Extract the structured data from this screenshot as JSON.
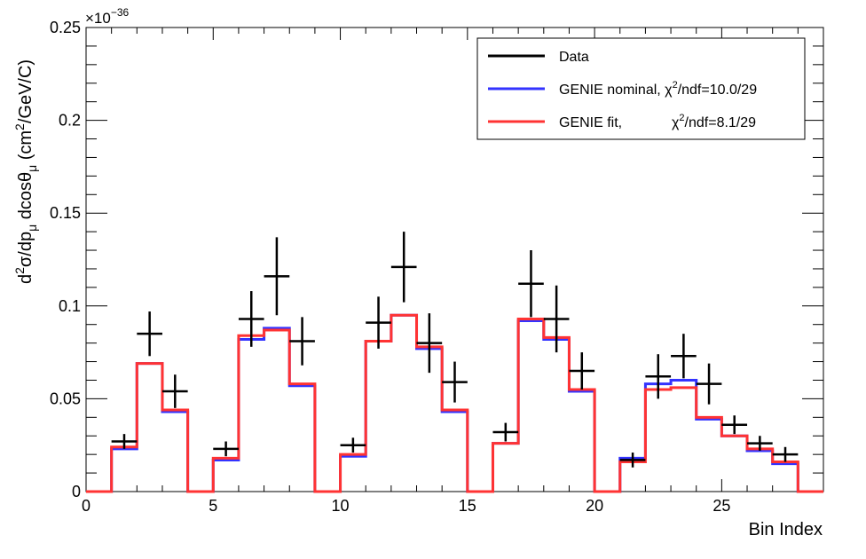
{
  "chart_data": {
    "type": "step",
    "title": "",
    "xlabel": "Bin Index",
    "ylabel": {
      "main": "d",
      "sup1": "2",
      "mid1": "σ/dp",
      "sub1": "μ",
      "mid2": " dcosθ",
      "sub2": "μ",
      "mid3": " (cm",
      "sup2": "2",
      "end": "/GeV/C)"
    },
    "xlim": [
      0,
      29
    ],
    "ylim": [
      0,
      0.25
    ],
    "y_multiplier": {
      "base": "×10",
      "exponent": "−36"
    },
    "x_ticks": [
      "0",
      "5",
      "10",
      "15",
      "20",
      "25"
    ],
    "x_tick_values": [
      0,
      5,
      10,
      15,
      20,
      25
    ],
    "y_ticks": [
      "0",
      "0.05",
      "0.1",
      "0.15",
      "0.2",
      "0.25"
    ],
    "y_tick_values": [
      0,
      0.05,
      0.1,
      0.15,
      0.2,
      0.25
    ],
    "bin_edges": [
      0,
      1,
      2,
      3,
      4,
      5,
      6,
      7,
      8,
      9,
      10,
      11,
      12,
      13,
      14,
      15,
      16,
      17,
      18,
      19,
      20,
      21,
      22,
      23,
      24,
      25,
      26,
      27,
      28,
      29
    ],
    "series": [
      {
        "name": "GENIE nominal",
        "color": "#3333ff",
        "values": [
          0,
          0.023,
          0.069,
          0.043,
          0,
          0.017,
          0.082,
          0.088,
          0.057,
          0,
          0.019,
          0.081,
          0.095,
          0.077,
          0.043,
          0,
          0.026,
          0.092,
          0.082,
          0.054,
          0,
          0.018,
          0.058,
          0.06,
          0.039,
          0.03,
          0.022,
          0.015,
          0
        ]
      },
      {
        "name": "GENIE fit",
        "color": "#ff3333",
        "values": [
          0,
          0.024,
          0.069,
          0.044,
          0,
          0.018,
          0.084,
          0.087,
          0.058,
          0,
          0.02,
          0.081,
          0.095,
          0.078,
          0.044,
          0,
          0.026,
          0.093,
          0.083,
          0.055,
          0,
          0.016,
          0.055,
          0.056,
          0.04,
          0.03,
          0.023,
          0.016,
          0
        ]
      }
    ],
    "data_points": {
      "name": "Data",
      "color": "#000000",
      "x": [
        1.5,
        2.5,
        3.5,
        5.5,
        6.5,
        7.5,
        8.5,
        10.5,
        11.5,
        12.5,
        13.5,
        14.5,
        16.5,
        17.5,
        18.5,
        19.5,
        21.5,
        22.5,
        23.5,
        24.5,
        25.5,
        26.5,
        27.5
      ],
      "y": [
        0.027,
        0.085,
        0.054,
        0.023,
        0.093,
        0.116,
        0.081,
        0.025,
        0.091,
        0.121,
        0.08,
        0.059,
        0.032,
        0.112,
        0.093,
        0.065,
        0.017,
        0.062,
        0.073,
        0.058,
        0.036,
        0.026,
        0.02
      ],
      "err": [
        0.004,
        0.012,
        0.009,
        0.004,
        0.015,
        0.021,
        0.013,
        0.004,
        0.014,
        0.019,
        0.016,
        0.011,
        0.005,
        0.018,
        0.018,
        0.01,
        0.004,
        0.012,
        0.012,
        0.011,
        0.005,
        0.004,
        0.004
      ]
    },
    "legend": {
      "placement": "top-right",
      "entries": [
        {
          "label": "Data",
          "color": "#000000"
        },
        {
          "label_main": "GENIE nominal, χ",
          "label_sup": "2",
          "label_end": "/ndf=10.0/29",
          "color": "#3333ff"
        },
        {
          "label_main": "GENIE fit,",
          "label_chi": "χ",
          "label_sup": "2",
          "label_end": "/ndf=8.1/29",
          "color": "#ff3333"
        }
      ]
    }
  }
}
